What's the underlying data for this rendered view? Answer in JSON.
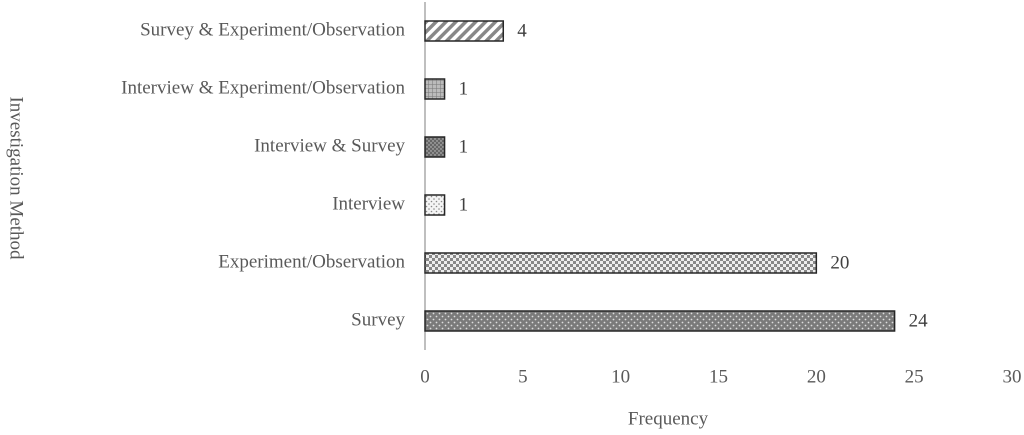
{
  "chart_data": {
    "type": "bar",
    "orientation": "horizontal",
    "categories": [
      "Survey",
      "Experiment/Observation",
      "Interview",
      "Interview & Survey",
      "Interview & Experiment/Observation",
      "Survey & Experiment/Observation"
    ],
    "values": [
      24,
      20,
      1,
      1,
      1,
      4
    ],
    "x_label": "Frequency",
    "y_label": "Investigation Method",
    "xlim": [
      0,
      30
    ],
    "xticks": [
      0,
      5,
      10,
      15,
      20,
      25,
      30
    ],
    "grid": false
  }
}
